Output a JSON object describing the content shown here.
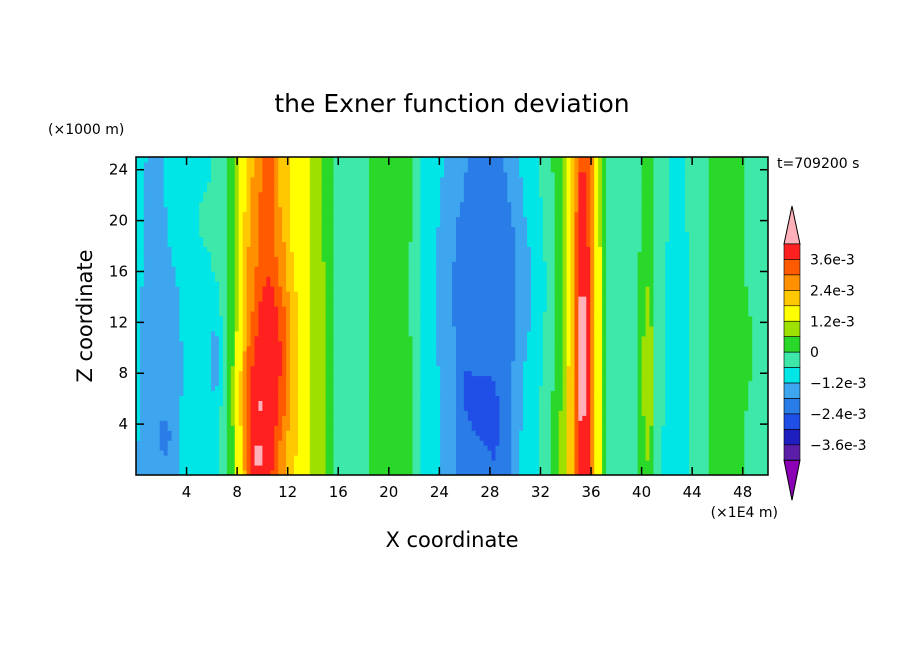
{
  "chart_data": {
    "type": "heatmap",
    "title": "the Exner function deviation",
    "xlabel": "X coordinate",
    "ylabel": "Z coordinate",
    "x_unit": "(×1E4 m)",
    "y_unit": "(×1000 m)",
    "time_label": "t=709200 s",
    "xlim": [
      0,
      50
    ],
    "ylim": [
      0,
      25
    ],
    "x_ticks": [
      4,
      8,
      12,
      16,
      20,
      24,
      28,
      32,
      36,
      40,
      44,
      48
    ],
    "y_ticks": [
      4,
      8,
      12,
      16,
      20,
      24
    ],
    "colorbar": {
      "levels": [
        -0.0042,
        -0.0036,
        -0.003,
        -0.0024,
        -0.0018,
        -0.0012,
        -0.0006,
        0,
        0.0006,
        0.0012,
        0.0018,
        0.0024,
        0.003,
        0.0036,
        0.0042
      ],
      "colors": [
        "#8b00b5",
        "#5a1fa6",
        "#1f1fbf",
        "#1f4fe6",
        "#2a7de6",
        "#3ea6ef",
        "#00e5e5",
        "#3ee8a8",
        "#2ad82a",
        "#9ee000",
        "#ffff00",
        "#ffc800",
        "#ff9000",
        "#ff5a00",
        "#ff2020",
        "#ffb0b8"
      ],
      "labels": [
        "3.6e-3",
        "2.4e-3",
        "1.2e-3",
        "0",
        "−1.2e-3",
        "−2.4e-3",
        "−3.6e-3"
      ]
    },
    "column_profile": {
      "x": [
        0,
        1.5,
        3,
        5,
        6.5,
        7.5,
        8.2,
        9,
        10,
        10.5,
        11.5,
        12.5,
        13.5,
        14.5,
        16,
        17.5,
        19,
        20.5,
        21.5,
        23,
        24.5,
        25.5,
        27,
        28.5,
        29.5,
        31,
        32.5,
        33.5,
        34.5,
        35.2,
        35.8,
        36.6,
        37.5,
        39,
        40.5,
        41.5,
        43,
        44.5,
        46,
        47.5,
        48.5,
        50
      ],
      "value": [
        -0.0012,
        -0.0015,
        -0.0012,
        -0.0008,
        -0.0006,
        0.0004,
        0.0014,
        0.0026,
        0.0034,
        0.0036,
        0.0026,
        0.0018,
        0.0014,
        0.0008,
        -0.0003,
        -0.0006,
        0.0004,
        0.0006,
        0.0001,
        -0.0008,
        -0.0013,
        -0.0018,
        -0.0022,
        -0.0024,
        -0.0018,
        -0.0009,
        -0.0004,
        0.0006,
        0.0022,
        0.0036,
        0.0036,
        0.0014,
        -0.0004,
        -0.0006,
        0.0004,
        -0.0006,
        -0.0008,
        -0.0004,
        0.0002,
        0.0004,
        -0.0002,
        -0.0006
      ]
    },
    "features": [
      {
        "x": 10,
        "z": 6,
        "rx": 1.2,
        "rz": 4,
        "value": 0.0044
      },
      {
        "x": 9.6,
        "z": 1.5,
        "rx": 0.8,
        "rz": 2.0,
        "value": 0.0044
      },
      {
        "x": 10.6,
        "z": 10,
        "rx": 1.4,
        "rz": 6,
        "value": 0.004
      },
      {
        "x": 35.3,
        "z": 10,
        "rx": 0.5,
        "rz": 14,
        "value": 0.0044
      },
      {
        "x": 27.5,
        "z": 6,
        "rx": 1.2,
        "rz": 3.5,
        "value": -0.0028
      },
      {
        "x": 26.2,
        "z": 7,
        "rx": 0.6,
        "rz": 2.5,
        "value": -0.0028
      },
      {
        "x": 2.3,
        "z": 3,
        "rx": 0.4,
        "rz": 1.5,
        "value": -0.0026
      },
      {
        "x": 2.2,
        "z": 9,
        "rx": 1.1,
        "rz": 6,
        "value": -0.0018
      },
      {
        "x": 6.2,
        "z": 9,
        "rx": 0.5,
        "rz": 3.5,
        "value": -0.0016
      },
      {
        "x": 27.8,
        "z": 15,
        "rx": 3.2,
        "rz": 8,
        "value": -0.0021
      },
      {
        "x": 20,
        "z": 22,
        "rx": 1.4,
        "rz": 3,
        "value": 0.0001
      },
      {
        "x": 47.3,
        "z": 10,
        "rx": 1.8,
        "rz": 6,
        "value": 0.0002
      },
      {
        "x": 40.5,
        "z": 8,
        "rx": 0.4,
        "rz": 6,
        "value": 0.0012
      },
      {
        "x": 5.5,
        "z": 20,
        "rx": 0.5,
        "rz": 2,
        "value": -0.0004
      }
    ]
  }
}
